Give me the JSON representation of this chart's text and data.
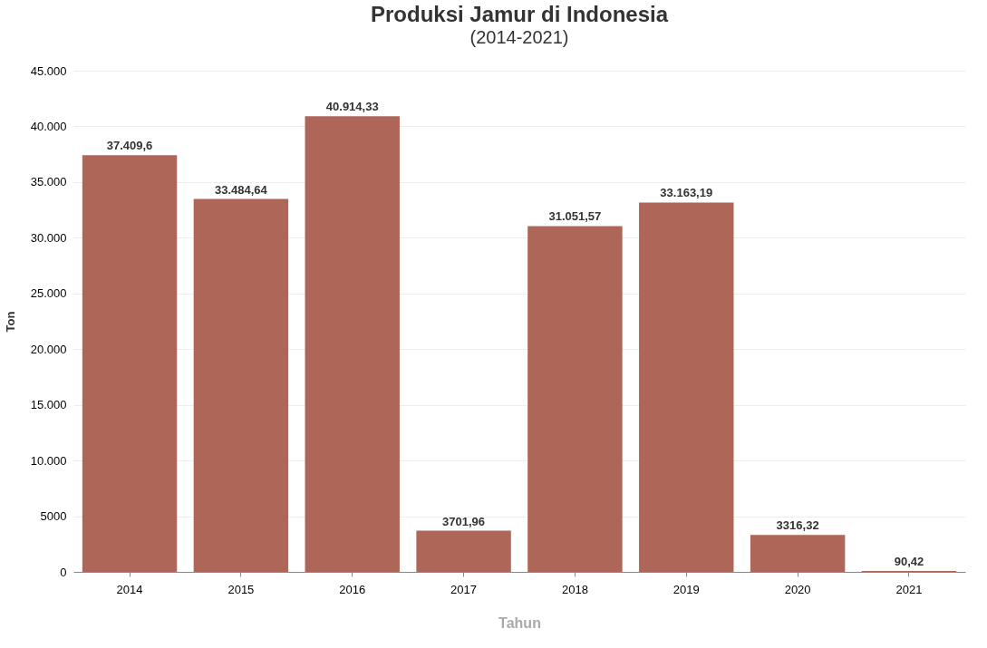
{
  "chart_data": {
    "type": "bar",
    "title": "Produksi Jamur di Indonesia",
    "subtitle": "(2014-2021)",
    "xlabel": "Tahun",
    "ylabel": "Ton",
    "categories": [
      "2014",
      "2015",
      "2016",
      "2017",
      "2018",
      "2019",
      "2020",
      "2021"
    ],
    "values": [
      37409.6,
      33484.64,
      40914.33,
      3701.96,
      31051.57,
      33163.19,
      3316.32,
      90.42
    ],
    "value_labels": [
      "37.409,6",
      "33.484,64",
      "40.914,33",
      "3701,96",
      "31.051,57",
      "33.163,19",
      "3316,32",
      "90,42"
    ],
    "color": "#ad6658",
    "ylim": [
      0,
      45000
    ],
    "yticks": [
      0,
      5000,
      {
        "value": 10000,
        "label": "10.000"
      },
      {
        "value": 15000,
        "label": "15.000"
      },
      {
        "value": 20000,
        "label": "20.000"
      },
      {
        "value": 25000,
        "label": "25.000"
      },
      {
        "value": 30000,
        "label": "30.000"
      },
      {
        "value": 35000,
        "label": "35.000"
      },
      {
        "value": 40000,
        "label": "40.000"
      },
      {
        "value": 45000,
        "label": "45.000"
      }
    ],
    "grid": "y"
  }
}
